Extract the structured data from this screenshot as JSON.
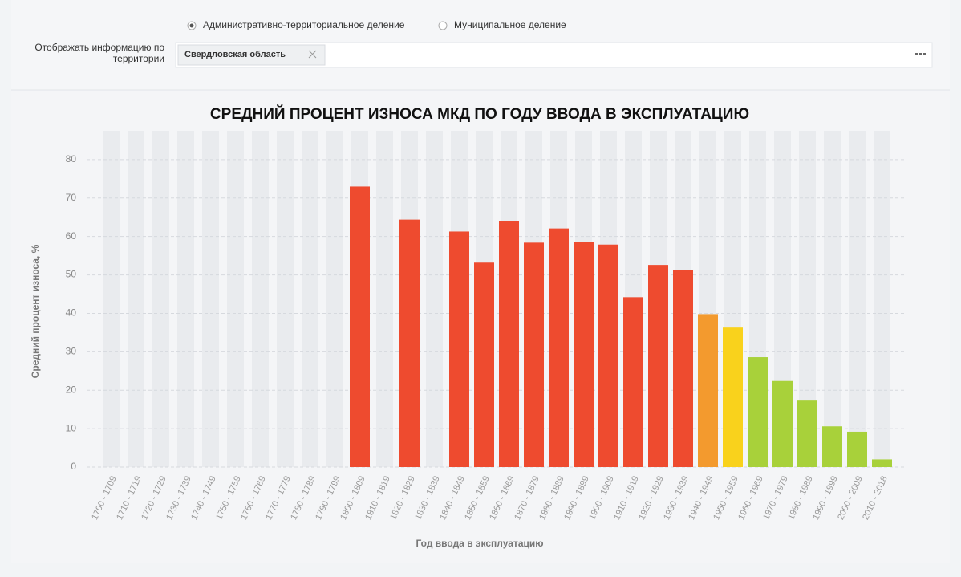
{
  "controls": {
    "radio_options": [
      "Административно-территориальное деление",
      "Муниципальное деление"
    ],
    "selected_radio": 0,
    "filter_label_lines": [
      "Отображать информацию по",
      "территории"
    ],
    "chip": "Свердловская область"
  },
  "chart_data": {
    "type": "bar",
    "title": "СРЕДНИЙ ПРОЦЕНТ ИЗНОСА МКД ПО ГОДУ ВВОДА В ЭКСПЛУАТАЦИЮ",
    "x_label": "Год ввода в эксплуатацию",
    "y_label": "Средний процент износа, %",
    "categories": [
      "1700 - 1709",
      "1710 - 1719",
      "1720 - 1729",
      "1730 - 1739",
      "1740 - 1749",
      "1750 - 1759",
      "1760 - 1769",
      "1770 - 1779",
      "1780 - 1789",
      "1790 - 1799",
      "1800 - 1809",
      "1810 - 1819",
      "1820 - 1829",
      "1830 - 1839",
      "1840 - 1849",
      "1850 - 1859",
      "1860 - 1869",
      "1870 - 1879",
      "1880 - 1889",
      "1890 - 1899",
      "1900 - 1909",
      "1910 - 1919",
      "1920 - 1929",
      "1930 - 1939",
      "1940 - 1949",
      "1950 - 1959",
      "1960 - 1969",
      "1970 - 1979",
      "1980 - 1989",
      "1990 - 1999",
      "2000 - 2009",
      "2010 - 2018"
    ],
    "values": [
      null,
      null,
      null,
      null,
      null,
      null,
      null,
      null,
      null,
      null,
      73,
      null,
      64.4,
      null,
      61.3,
      53.2,
      64.1,
      58.4,
      62.1,
      58.6,
      57.9,
      44.2,
      52.6,
      51.2,
      39.8,
      36.3,
      28.6,
      22.4,
      17.3,
      10.6,
      9.2,
      2.0
    ],
    "colors": [
      null,
      null,
      null,
      null,
      null,
      null,
      null,
      null,
      null,
      null,
      "#ee4b2f",
      null,
      "#ee4b2f",
      null,
      "#ee4b2f",
      "#ee4b2f",
      "#ee4b2f",
      "#ee4b2f",
      "#ee4b2f",
      "#ee4b2f",
      "#ee4b2f",
      "#ee4b2f",
      "#ee4b2f",
      "#ee4b2f",
      "#f39a2e",
      "#f9d21c",
      "#a8d13a",
      "#a8d13a",
      "#a8d13a",
      "#a8d13a",
      "#a8d13a",
      "#a8d13a"
    ],
    "ylim": [
      0,
      87.5
    ],
    "yticks": [
      0,
      10,
      20,
      30,
      40,
      50,
      60,
      70,
      80
    ],
    "grid": true
  }
}
